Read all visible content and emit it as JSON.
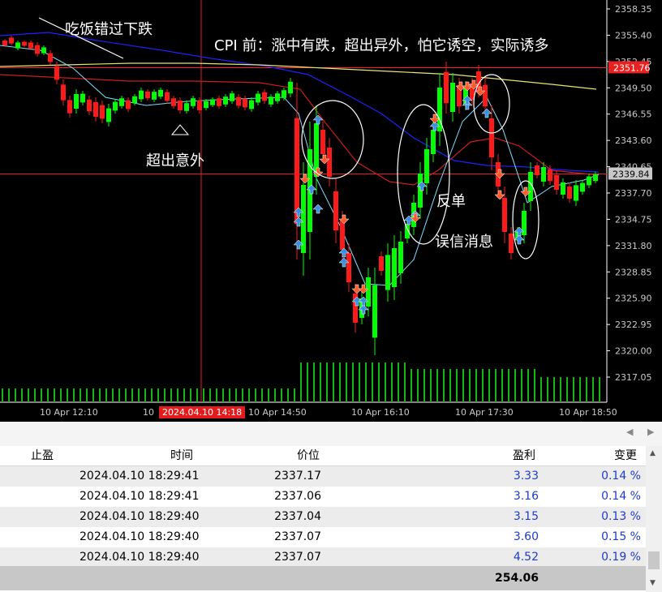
{
  "chart": {
    "price_ticks": [
      "2358.35",
      "2355.40",
      "2352.45",
      "2349.50",
      "2346.55",
      "2343.60",
      "2340.65",
      "2337.70",
      "2334.75",
      "2331.80",
      "2328.85",
      "2325.90",
      "2322.95",
      "2320.00",
      "2317.05"
    ],
    "price_labels": {
      "red": "2351.76",
      "current": "2339.84"
    },
    "time_labels": [
      "10 Apr 12:10",
      "10",
      "10 Apr 14:50",
      "10 Apr 16:10",
      "10 Apr 17:30",
      "10 Apr 18:50"
    ],
    "crosshair_time": "2024.04.10 14:18",
    "colors": {
      "up": "#00ff00",
      "down": "#ff1a1a",
      "bg": "#000000",
      "grid_text": "#c8c8c8",
      "ma_blue": "#2020ff",
      "ma_red": "#c81e1e",
      "ma_yellow": "#e6e678",
      "ma_cyan": "#7fdfff",
      "arrow_buy": "#3a8fe0",
      "arrow_sell": "#ff5a2a"
    }
  },
  "annotations": {
    "top_left": "吃饭错过下跌",
    "top_main": "CPI 前：涨中有跌，超出异外，怕它诱空，实际诱多",
    "left_mid": "超出意外",
    "reverse": "反单",
    "false_news": "误信消息"
  },
  "table": {
    "headers": {
      "tp": "止盈",
      "time": "时间",
      "price": "价位",
      "profit": "盈利",
      "change": "变更"
    },
    "rows": [
      {
        "time": "2024.04.10 18:29:41",
        "price": "2337.17",
        "profit": "3.33",
        "change": "0.14 %"
      },
      {
        "time": "2024.04.10 18:29:41",
        "price": "2337.06",
        "profit": "3.16",
        "change": "0.14 %"
      },
      {
        "time": "2024.04.10 18:29:40",
        "price": "2337.04",
        "profit": "3.15",
        "change": "0.13 %"
      },
      {
        "time": "2024.04.10 18:29:40",
        "price": "2337.07",
        "profit": "3.60",
        "change": "0.15 %"
      },
      {
        "time": "2024.04.10 18:29:40",
        "price": "2337.07",
        "profit": "4.52",
        "change": "0.19 %"
      }
    ],
    "total_profit": "254.06"
  }
}
